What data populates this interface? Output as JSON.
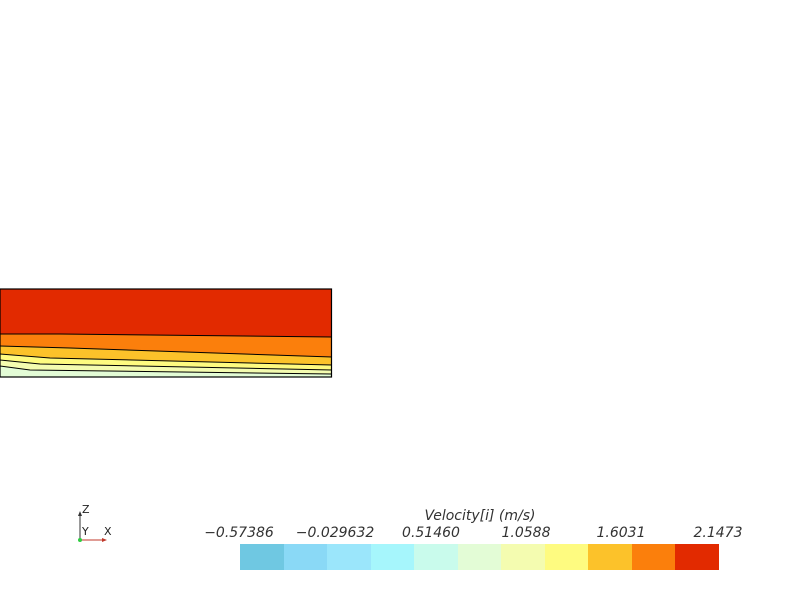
{
  "legend": {
    "title": "Velocity[i] (m/s)",
    "tick_labels": [
      "−0.57386",
      "−0.029632",
      "0.51460",
      "1.0588",
      "1.6031",
      "2.1473"
    ],
    "colors": [
      "#6fc8e2",
      "#8ad9f6",
      "#9be6fb",
      "#a6f6fc",
      "#c9fbec",
      "#e3fcd6",
      "#f4fcb0",
      "#fefb80",
      "#fcc22a",
      "#fb7f0c",
      "#e22a00"
    ]
  },
  "triad": {
    "z_label": "Z",
    "y_label": "Y",
    "x_label": "X"
  },
  "field": {
    "band_colors": [
      "#e22a00",
      "#fb7f0c",
      "#fcc22a",
      "#fefb80",
      "#f4fcb0",
      "#e3fcd6"
    ],
    "outline_color": "#000000"
  }
}
